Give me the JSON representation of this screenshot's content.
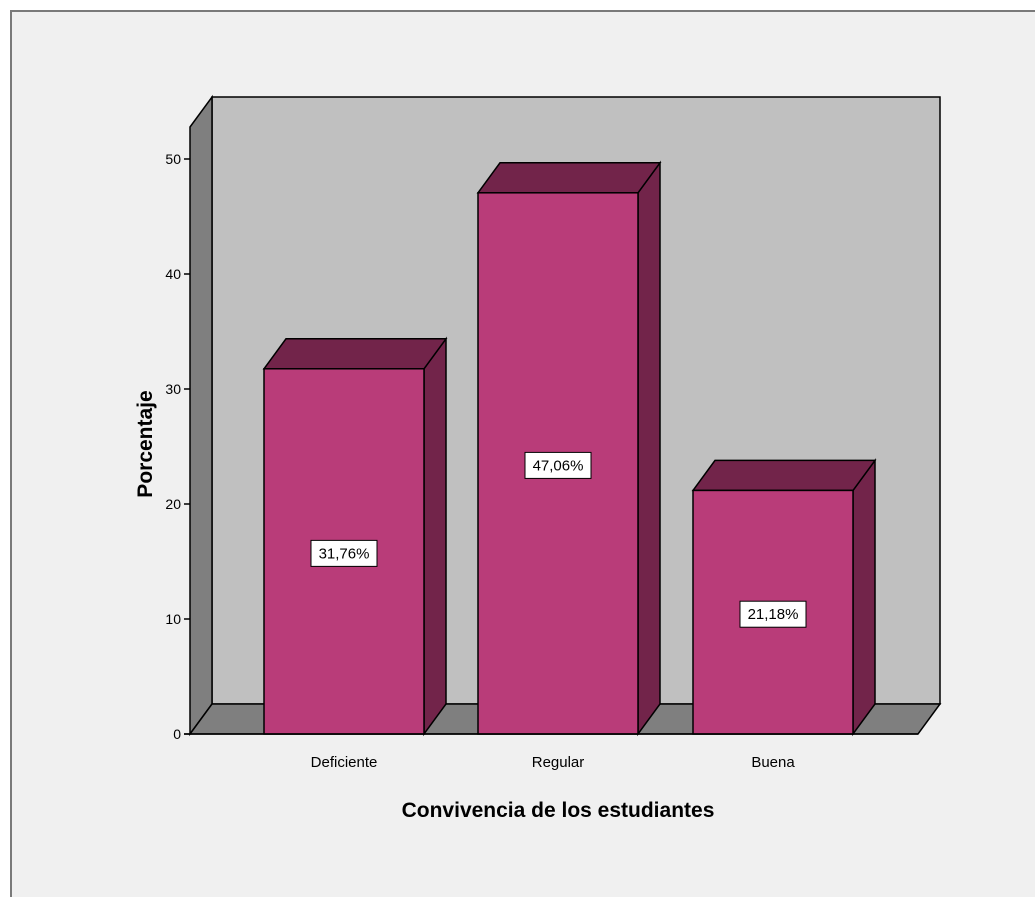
{
  "chart_data": {
    "type": "bar",
    "style": "3d",
    "categories": [
      "Deficiente",
      "Regular",
      "Buena"
    ],
    "values": [
      31.76,
      47.06,
      21.18
    ],
    "data_labels": [
      "31,76%",
      "47,06%",
      "21,18%"
    ],
    "xlabel": "Convivencia de los estudiantes",
    "ylabel": "Porcentaje",
    "ylim": [
      0,
      50
    ],
    "yticks": [
      0,
      10,
      20,
      30,
      40,
      50
    ],
    "grid": false,
    "legend": "none",
    "colors": {
      "bar_front": "#b93c79",
      "bar_top": "#72244a",
      "bar_side": "#72244a",
      "back_wall": "#c0c0c0",
      "side_wall": "#7f7f7f",
      "floor": "#7f7f7f",
      "background": "#f0f0f0"
    }
  }
}
